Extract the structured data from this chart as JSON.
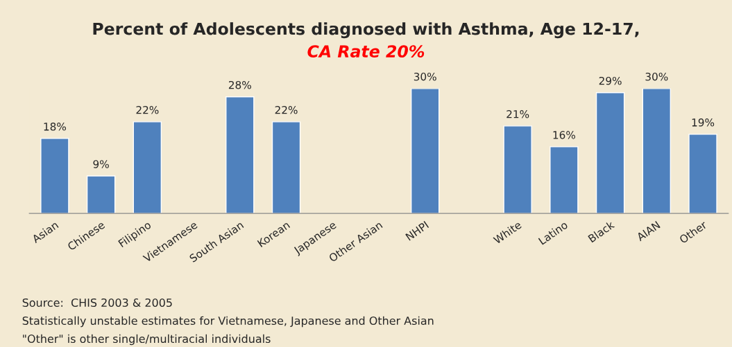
{
  "chart_data": {
    "type": "bar",
    "title": "Percent of Adolescents diagnosed with Asthma, Age 12-17,",
    "subtitle": "CA Rate 20%",
    "categories": [
      "Asian",
      "Chinese",
      "Filipino",
      "Vietnamese",
      "South Asian",
      "Korean",
      "Japanese",
      "Other Asian",
      "NHPI",
      null,
      "White",
      "Latino",
      "Black",
      "AIAN",
      "Other"
    ],
    "values": [
      18,
      9,
      22,
      null,
      28,
      22,
      null,
      null,
      30,
      null,
      21,
      16,
      29,
      30,
      19
    ],
    "value_labels": [
      "18%",
      "9%",
      "22%",
      null,
      "28%",
      "22%",
      null,
      null,
      "30%",
      null,
      "21%",
      "16%",
      "29%",
      "30%",
      "19%"
    ],
    "color": "#4f81bd",
    "tick_labels": "x",
    "grid": false,
    "legend": false,
    "annotations": [
      "Source:  CHIS 2003 & 2005",
      "Statistically unstable estimates for Vietnamese, Japanese and Other Asian",
      "\"Other\" is other single/multiracial individuals"
    ]
  }
}
